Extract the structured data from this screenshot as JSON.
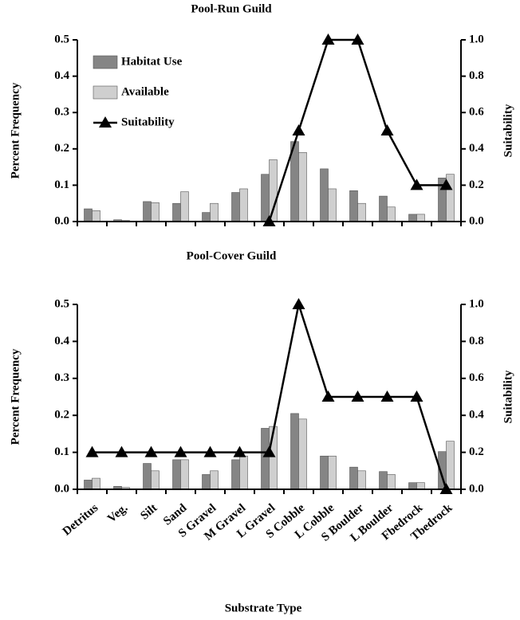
{
  "chart_data": [
    {
      "type": "bar",
      "title": "Pool-Run Guild",
      "ylabel": "Percent Frequency",
      "y2label": "Suitability",
      "legend": "upper left",
      "ylim": [
        0,
        0.5
      ],
      "yticks": [
        {
          "value": 0,
          "label": "0.0"
        },
        0.1,
        0.2,
        0.3,
        0.4,
        0.5
      ],
      "y2lim": [
        0,
        1
      ],
      "y2ticks": [
        {
          "value": 0,
          "label": "0.0"
        },
        0.2,
        0.4,
        0.6,
        0.8,
        {
          "value": 1,
          "label": "1.0"
        }
      ],
      "series": [
        {
          "name": "Habitat Use",
          "color": "#858585",
          "values": [
            0.035,
            0.005,
            0.055,
            0.05,
            0.025,
            0.08,
            0.13,
            0.22,
            0.145,
            0.085,
            0.07,
            0.02,
            0.12
          ]
        },
        {
          "name": "Available",
          "color": "#cfcfcf",
          "values": [
            0.03,
            0.003,
            0.052,
            0.082,
            0.05,
            0.09,
            0.17,
            0.19,
            0.09,
            0.05,
            0.04,
            0.02,
            0.13
          ]
        },
        {
          "name": "Suitability",
          "type": "line",
          "axis": "y2",
          "color": "#000000",
          "values": [
            null,
            null,
            null,
            null,
            null,
            null,
            0,
            0.5,
            1,
            1,
            0.5,
            0.2,
            0.2
          ]
        }
      ]
    },
    {
      "type": "bar",
      "title": "Pool-Cover Guild",
      "ylabel": "Percent Frequency",
      "y2label": "Suitability",
      "xlabel": "Substrate Type",
      "categories": [
        "Detritus",
        "Veg.",
        "Silt",
        "Sand",
        "S Gravel",
        "M Gravel",
        "L Gravel",
        "S Cobble",
        "L Cobble",
        "S Boulder",
        "L Boulder",
        "Fbedrock",
        "Tbedrock"
      ],
      "ylim": [
        0,
        0.5
      ],
      "yticks": [
        {
          "value": 0,
          "label": "0.0"
        },
        0.1,
        0.2,
        0.3,
        0.4,
        0.5
      ],
      "y2lim": [
        0,
        1
      ],
      "y2ticks": [
        {
          "value": 0,
          "label": "0.0"
        },
        0.2,
        0.4,
        0.6,
        0.8,
        {
          "value": 1,
          "label": "1.0"
        }
      ],
      "series": [
        {
          "color": "#858585",
          "values": [
            0.025,
            0.008,
            0.07,
            0.08,
            0.04,
            0.08,
            0.165,
            0.205,
            0.09,
            0.06,
            0.048,
            0.018,
            0.102
          ]
        },
        {
          "color": "#cfcfcf",
          "values": [
            0.03,
            0.005,
            0.05,
            0.08,
            0.05,
            0.09,
            0.17,
            0.19,
            0.09,
            0.05,
            0.04,
            0.018,
            0.13
          ]
        },
        {
          "type": "line",
          "axis": "y2",
          "color": "#000000",
          "values": [
            0.2,
            0.2,
            0.2,
            0.2,
            0.2,
            0.2,
            0.2,
            1,
            0.5,
            0.5,
            0.5,
            0.5,
            0
          ]
        }
      ]
    }
  ]
}
